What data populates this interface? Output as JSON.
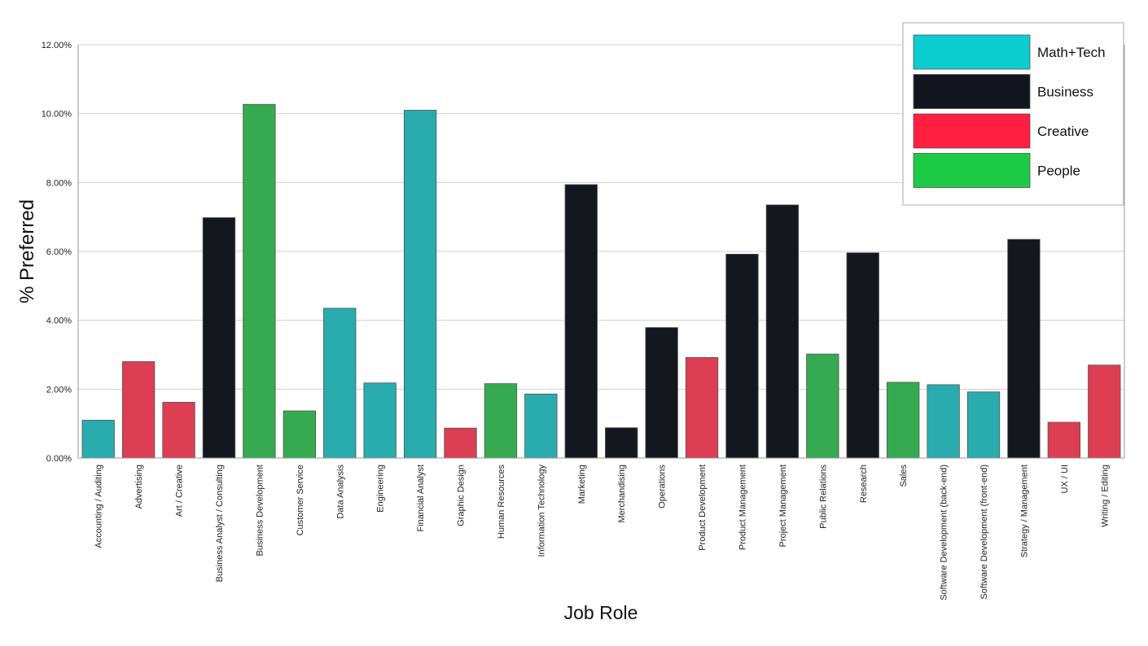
{
  "chart_data": {
    "type": "bar",
    "xlabel": "Job Role",
    "ylabel": "% Preferred",
    "ylim": [
      0,
      12
    ],
    "yticks": [
      0,
      2,
      4,
      6,
      8,
      10,
      12
    ],
    "ytick_labels": [
      "0.00%",
      "2.00%",
      "4.00%",
      "6.00%",
      "8.00%",
      "10.00%",
      "12.00%"
    ],
    "grid": true,
    "legend_position": "top-right",
    "groups": [
      {
        "name": "Math+Tech",
        "color": "#0ccdd0",
        "bar_color": "#2aabae"
      },
      {
        "name": "Business",
        "color": "#13161e",
        "bar_color": "#15171f"
      },
      {
        "name": "Creative",
        "color": "#fe1f41",
        "bar_color": "#dc3e54"
      },
      {
        "name": "People",
        "color": "#1dca45",
        "bar_color": "#36aa50"
      }
    ],
    "categories": [
      "Accounting / Auditing",
      "Advertising",
      "Art / Creative",
      "Business Analyst / Consulting",
      "Business Development",
      "Customer Service",
      "Data Analysis",
      "Engineering",
      "Financial Analyst",
      "Graphic Design",
      "Human Resources",
      "Information Technology",
      "Marketing",
      "Merchandising",
      "Operations",
      "Product Development",
      "Product Management",
      "Project Management",
      "Public Relations",
      "Research",
      "Sales",
      "Software Development (back-end)",
      "Software Development (front-end)",
      "Strategy / Management",
      "UX / UI",
      "Writing / Editing"
    ],
    "values": [
      1.1,
      2.8,
      1.62,
      6.98,
      10.27,
      1.37,
      4.35,
      2.18,
      10.1,
      0.87,
      2.16,
      1.86,
      7.94,
      0.88,
      3.79,
      2.92,
      5.92,
      7.35,
      3.02,
      5.96,
      2.2,
      2.13,
      1.92,
      6.35,
      1.04,
      2.7
    ],
    "category_groups": [
      "Math+Tech",
      "Creative",
      "Creative",
      "Business",
      "People",
      "People",
      "Math+Tech",
      "Math+Tech",
      "Math+Tech",
      "Creative",
      "People",
      "Math+Tech",
      "Business",
      "Business",
      "Business",
      "Creative",
      "Business",
      "Business",
      "People",
      "Business",
      "People",
      "Math+Tech",
      "Math+Tech",
      "Business",
      "Creative",
      "Creative"
    ]
  }
}
